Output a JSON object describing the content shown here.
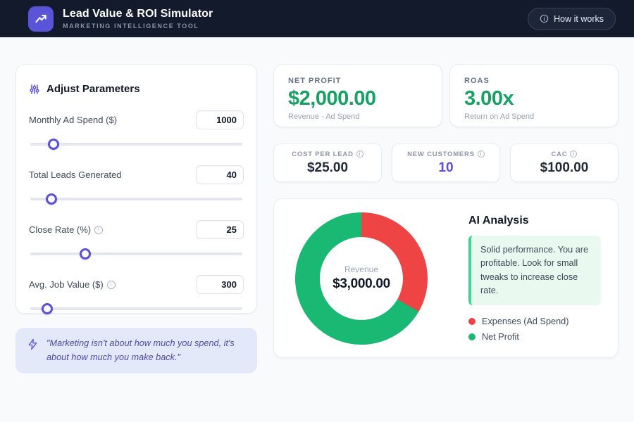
{
  "header": {
    "title": "Lead Value & ROI Simulator",
    "subtitle": "MARKETING INTELLIGENCE TOOL",
    "help_button": "How it works"
  },
  "parameters": {
    "title": "Adjust Parameters",
    "items": [
      {
        "label": "Monthly Ad Spend ($)",
        "value": "1000",
        "percent": 11
      },
      {
        "label": "Total Leads Generated",
        "value": "40",
        "percent": 10
      },
      {
        "label": "Close Rate (%)",
        "value": "25",
        "percent": 26
      },
      {
        "label": "Avg. Job Value ($)",
        "value": "300",
        "percent": 8
      }
    ]
  },
  "quote": "\"Marketing isn't about how much you spend, it's about how much you make back.\"",
  "kpis": {
    "net_profit": {
      "label": "NET PROFIT",
      "value": "$2,000.00",
      "sub": "Revenue - Ad Spend"
    },
    "roas": {
      "label": "ROAS",
      "value": "3.00x",
      "sub": "Return on Ad Spend"
    }
  },
  "mini_cards": [
    {
      "label": "COST PER LEAD",
      "value": "$25.00"
    },
    {
      "label": "NEW CUSTOMERS",
      "value": "10"
    },
    {
      "label": "CAC",
      "value": "$100.00"
    }
  ],
  "analysis": {
    "title": "AI Analysis",
    "message": "Solid performance. You are profitable. Look for small tweaks to increase close rate.",
    "legend": [
      {
        "label": "Expenses (Ad Spend)",
        "color": "#ef4444"
      },
      {
        "label": "Net Profit",
        "color": "#19b873"
      }
    ]
  },
  "chart_data": {
    "type": "pie",
    "title": "Revenue breakdown donut",
    "center_label": "Revenue",
    "center_value": "$3,000.00",
    "total": 3000,
    "slices": [
      {
        "label": "Expenses (Ad Spend)",
        "value": 1000,
        "color": "#ef4444"
      },
      {
        "label": "Net Profit",
        "value": 2000,
        "color": "#19b873"
      }
    ],
    "legend_position": "right"
  },
  "colors": {
    "header_bg": "#121a2c",
    "accent_indigo": "#5b50d6",
    "positive_green": "#18a164",
    "chart_green": "#19b873",
    "chart_red": "#ef4444",
    "page_bg": "#f8fafc"
  }
}
